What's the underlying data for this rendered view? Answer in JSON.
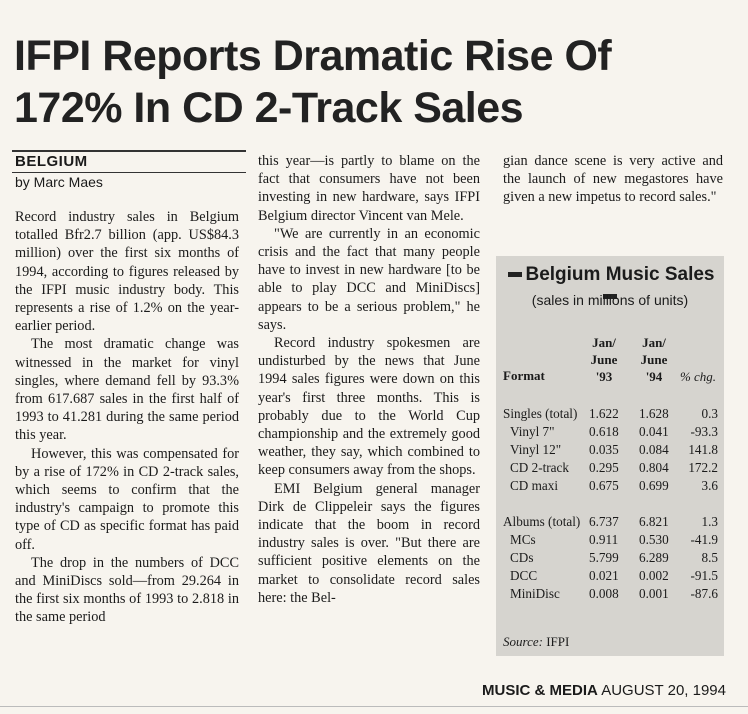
{
  "headline": {
    "line1": "IFPI Reports Dramatic Rise Of",
    "line2": "172% In CD 2-Track Sales"
  },
  "kicker": "BELGIUM",
  "byline": "by Marc Maes",
  "columns": {
    "col1": [
      "Record industry sales in Belgium totalled Bfr2.7 billion (app. US$84.3 million) over the first six months of 1994, according to figures released by the IFPI music industry body. This represents a rise of 1.2% on the year-earlier period.",
      "The most dramatic change was witnessed in the market for vinyl singles, where demand fell by 93.3% from 617.687 sales in the first half of 1993 to 41.281 during the same period this year.",
      "However, this was compensated for by a rise of 172% in CD 2-track sales, which seems to confirm that the industry's campaign to promote this type of CD as specific format has paid off.",
      "The drop in the numbers of DCC and MiniDiscs sold—from 29.264 in the first six months of 1993 to 2.818 in the same period"
    ],
    "col2": [
      "this year—is partly to blame on the fact that consumers have not been investing in new hardware, says IFPI Belgium director Vincent van Mele.",
      "\"We are currently in an economic crisis and the fact that many people have to invest in new hardware [to be able to play DCC and MiniDiscs] appears to be a serious problem,\" he says.",
      "Record industry spokesmen are undisturbed by the news that June 1994 sales figures were down on this year's first three months. This is probably due to the World Cup championship and the extremely good weather, they say, which combined to keep consumers away from the shops.",
      "EMI Belgium general manager Dirk de Clippeleir says the figures indicate that the boom in record industry sales is over. \"But there are sufficient positive elements on the market to consolidate record sales here: the Bel-"
    ],
    "col3": [
      "gian dance scene is very active and the launch of new megastores have given a new impetus to record sales.\""
    ]
  },
  "sidebar": {
    "title": "Belgium Music Sales",
    "subtitle": "(sales in millions of units)",
    "headers": {
      "format": "Format",
      "col1": [
        "Jan/",
        "June",
        "'93"
      ],
      "col2": [
        "Jan/",
        "June",
        "'94"
      ],
      "col3": "% chg."
    },
    "rows": [
      {
        "label": "Singles (total)",
        "v93": "1.622",
        "v94": "1.628",
        "chg": "0.3"
      },
      {
        "label": "Vinyl 7\"",
        "v93": "0.618",
        "v94": "0.041",
        "chg": "-93.3"
      },
      {
        "label": "Vinyl 12\"",
        "v93": "0.035",
        "v94": "0.084",
        "chg": "141.8"
      },
      {
        "label": "CD 2-track",
        "v93": "0.295",
        "v94": "0.804",
        "chg": "172.2"
      },
      {
        "label": "CD maxi",
        "v93": "0.675",
        "v94": "0.699",
        "chg": "3.6"
      },
      {
        "label": "Albums (total)",
        "v93": "6.737",
        "v94": "6.821",
        "chg": "1.3"
      },
      {
        "label": "MCs",
        "v93": "0.911",
        "v94": "0.530",
        "chg": "-41.9"
      },
      {
        "label": "CDs",
        "v93": "5.799",
        "v94": "6.289",
        "chg": "8.5"
      },
      {
        "label": "DCC",
        "v93": "0.021",
        "v94": "0.002",
        "chg": "-91.5"
      },
      {
        "label": "MiniDisc",
        "v93": "0.008",
        "v94": "0.001",
        "chg": "-87.6"
      }
    ],
    "source_label": "Source:",
    "source_value": " IFPI"
  },
  "footer": {
    "publication": "MUSIC & MEDIA",
    "date": "AUGUST 20, 1994"
  }
}
